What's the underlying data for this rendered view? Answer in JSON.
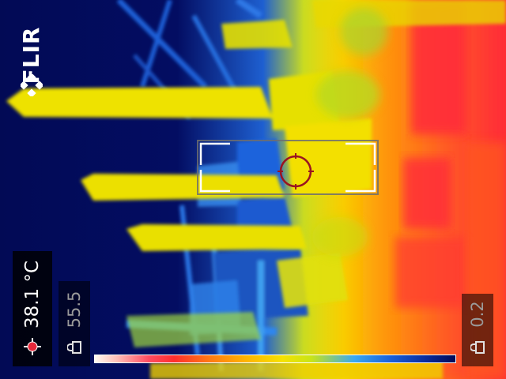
{
  "camera": {
    "brand": "FLIR",
    "icon": "flir-logo-icon"
  },
  "measurement": {
    "spot_temperature": "38.1 °C",
    "spot_icon": "spot-meter-icon"
  },
  "scale": {
    "max_value": "55.5",
    "min_value": "0.2",
    "lock_icon": "lock-icon",
    "palette": "iron-rainbow"
  },
  "colors": {
    "hot": "#ff2d2d",
    "warm": "#ffb400",
    "mid": "#f6e200",
    "cool": "#1a60d8",
    "cold": "#020a55"
  }
}
